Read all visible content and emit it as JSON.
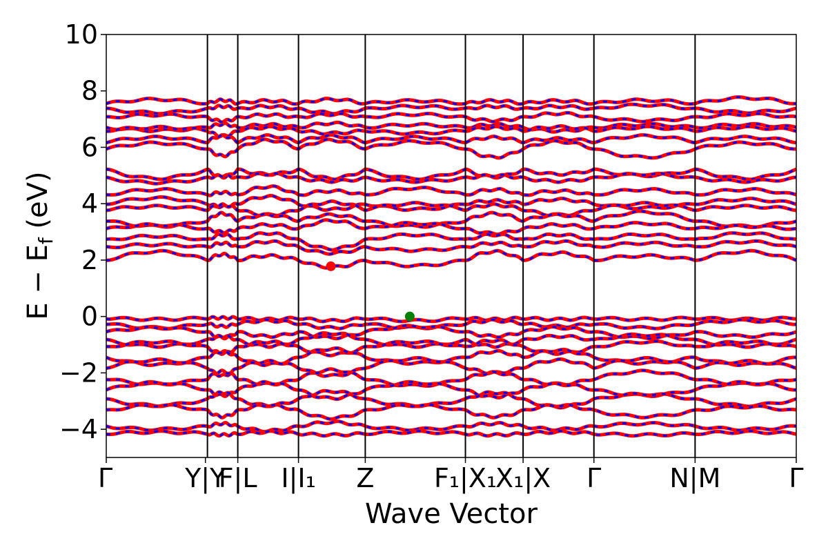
{
  "chart_data": {
    "type": "line",
    "xlabel": "Wave Vector",
    "ylabel": "E − E",
    "ylabel_sub": "f",
    "ylabel_unit": " (eV)",
    "ylim": [
      -5,
      10
    ],
    "yticks": [
      -4,
      -2,
      0,
      2,
      4,
      6,
      8,
      10
    ],
    "ytick_labels": [
      "−4",
      "−2",
      "0",
      "2",
      "4",
      "6",
      "8",
      "10"
    ],
    "xlim": [
      0,
      6.82
    ],
    "kpoint_lines": [
      0,
      1.0,
      1.3,
      1.9,
      2.56,
      3.55,
      4.12,
      4.82,
      5.82,
      6.82
    ],
    "xtick_labels": [
      {
        "x": 0,
        "text": "Γ"
      },
      {
        "x": 0.98,
        "text": "Y|Y"
      },
      {
        "x": 1.3,
        "text": "F|L"
      },
      {
        "x": 1.9,
        "text": "I|I₁"
      },
      {
        "x": 2.56,
        "text": "Z"
      },
      {
        "x": 3.55,
        "text": "F₁|X₁"
      },
      {
        "x": 4.12,
        "text": "X₁|X"
      },
      {
        "x": 4.82,
        "text": "Γ"
      },
      {
        "x": 5.82,
        "text": "N|M"
      },
      {
        "x": 6.82,
        "text": "Γ"
      }
    ],
    "series": [
      {
        "color": "#ff0000",
        "style": "solid",
        "role": "spin-up"
      },
      {
        "color": "#0000ff",
        "style": "dashed",
        "role": "spin-down"
      }
    ],
    "conduction_band_minimum": {
      "x": 2.22,
      "y": 1.78,
      "color": "#ff0000"
    },
    "valence_band_maximum": {
      "x": 3.0,
      "y": 0.0,
      "color": "#008000"
    },
    "bands": [
      {
        "base": 7.55,
        "amps": [
          0.15,
          0.12,
          0.1,
          0.15,
          0.1,
          0.1,
          0.1,
          0.12,
          0.2
        ]
      },
      {
        "base": 7.35,
        "amps": [
          -0.12,
          0.1,
          0.1,
          -0.12,
          0.1,
          0.1,
          0.1,
          0.15,
          -0.1
        ]
      },
      {
        "base": 7.05,
        "amps": [
          0.1,
          -0.12,
          0.1,
          0.12,
          0.12,
          -0.1,
          0.15,
          -0.1,
          0.12
        ]
      },
      {
        "base": 6.7,
        "amps": [
          -0.1,
          0.12,
          0.1,
          0.15,
          0.1,
          0.1,
          -0.12,
          0.1,
          0.1
        ]
      },
      {
        "base": 6.6,
        "amps": [
          0.1,
          -0.2,
          0.1,
          -0.1,
          -0.1,
          0.1,
          0.12,
          0.1,
          0.1
        ]
      },
      {
        "base": 6.2,
        "amps": [
          0.15,
          0.2,
          0.2,
          0.2,
          0.15,
          0.15,
          0.1,
          0.2,
          0.15
        ]
      },
      {
        "base": 5.95,
        "amps": [
          0.2,
          -0.25,
          0.3,
          0.3,
          0.25,
          -0.3,
          0.25,
          -0.3,
          0.2
        ]
      },
      {
        "base": 5.2,
        "amps": [
          -0.3,
          -0.25,
          -0.15,
          -0.3,
          -0.3,
          -0.25,
          -0.15,
          -0.2,
          -0.3
        ]
      },
      {
        "base": 4.9,
        "amps": [
          -0.15,
          0.1,
          0.15,
          -0.1,
          -0.1,
          0.1,
          -0.1,
          0.15,
          -0.1
        ]
      },
      {
        "base": 4.3,
        "amps": [
          0.2,
          0.1,
          0.3,
          0.15,
          0.25,
          0.2,
          0.15,
          0.2,
          0.2
        ]
      },
      {
        "base": 4.0,
        "amps": [
          0.2,
          -0.1,
          0.25,
          -0.2,
          -0.2,
          0.1,
          0.15,
          -0.15,
          0.15
        ]
      },
      {
        "base": 3.8,
        "amps": [
          0.1,
          0.15,
          -0.2,
          0.25,
          0.2,
          0.15,
          -0.2,
          0.2,
          0.1
        ]
      },
      {
        "base": 3.4,
        "amps": [
          -0.2,
          0.25,
          0.2,
          0.2,
          -0.2,
          0.25,
          0.2,
          0.3,
          -0.2
        ]
      },
      {
        "base": 3.1,
        "amps": [
          0.15,
          -0.1,
          0.15,
          0.3,
          0.2,
          -0.15,
          0.15,
          0.2,
          0.1
        ]
      },
      {
        "base": 2.7,
        "amps": [
          0.15,
          0.2,
          0.25,
          -0.3,
          0.2,
          0.2,
          0.2,
          0.2,
          0.25
        ]
      },
      {
        "base": 2.45,
        "amps": [
          0.1,
          0.15,
          0.2,
          -0.2,
          -0.1,
          0.15,
          0.2,
          0.15,
          0.2
        ]
      },
      {
        "base": 2.0,
        "amps": [
          0.3,
          0.2,
          0.15,
          -0.25,
          -0.2,
          0.3,
          0.25,
          0.15,
          0.3
        ]
      },
      {
        "base": -0.05,
        "amps": [
          -0.05,
          0.0,
          -0.05,
          -0.1,
          -0.1,
          -0.05,
          -0.05,
          -0.05,
          -0.05
        ]
      },
      {
        "base": -0.25,
        "amps": [
          -0.15,
          -0.1,
          0.1,
          -0.15,
          -0.15,
          0.1,
          -0.1,
          -0.15,
          0.1
        ]
      },
      {
        "base": -0.55,
        "amps": [
          0.15,
          -0.2,
          -0.15,
          -0.2,
          0.2,
          -0.15,
          0.15,
          -0.2,
          -0.15
        ]
      },
      {
        "base": -0.85,
        "amps": [
          -0.2,
          0.15,
          -0.2,
          0.25,
          -0.2,
          -0.2,
          0.15,
          0.2,
          -0.2
        ]
      },
      {
        "base": -1.1,
        "amps": [
          0.2,
          -0.2,
          0.2,
          -0.25,
          0.2,
          0.25,
          -0.2,
          0.2,
          0.2
        ]
      },
      {
        "base": -1.45,
        "amps": [
          -0.25,
          0.2,
          -0.25,
          0.3,
          -0.2,
          0.2,
          0.25,
          -0.2,
          -0.25
        ]
      },
      {
        "base": -1.8,
        "amps": [
          0.25,
          -0.3,
          0.2,
          -0.3,
          0.3,
          -0.2,
          0.25,
          0.3,
          0.2
        ]
      },
      {
        "base": -2.2,
        "amps": [
          -0.2,
          0.25,
          -0.2,
          0.3,
          -0.25,
          0.2,
          -0.2,
          0.25,
          -0.2
        ]
      },
      {
        "base": -2.6,
        "amps": [
          0.25,
          -0.2,
          0.25,
          -0.3,
          0.25,
          -0.25,
          0.2,
          -0.2,
          0.25
        ]
      },
      {
        "base": -2.95,
        "amps": [
          -0.2,
          0.25,
          -0.2,
          0.3,
          -0.2,
          0.25,
          -0.25,
          0.2,
          -0.2
        ]
      },
      {
        "base": -3.35,
        "amps": [
          0.2,
          -0.2,
          0.2,
          -0.25,
          0.2,
          -0.2,
          0.2,
          -0.2,
          0.15
        ]
      },
      {
        "base": -3.9,
        "amps": [
          -0.1,
          0.1,
          -0.15,
          0.15,
          -0.1,
          0.1,
          -0.1,
          0.1,
          -0.1
        ]
      },
      {
        "base": -4.15,
        "amps": [
          0.05,
          -0.05,
          0.05,
          -0.05,
          0.05,
          -0.05,
          0.05,
          -0.05,
          0.05
        ]
      }
    ]
  }
}
